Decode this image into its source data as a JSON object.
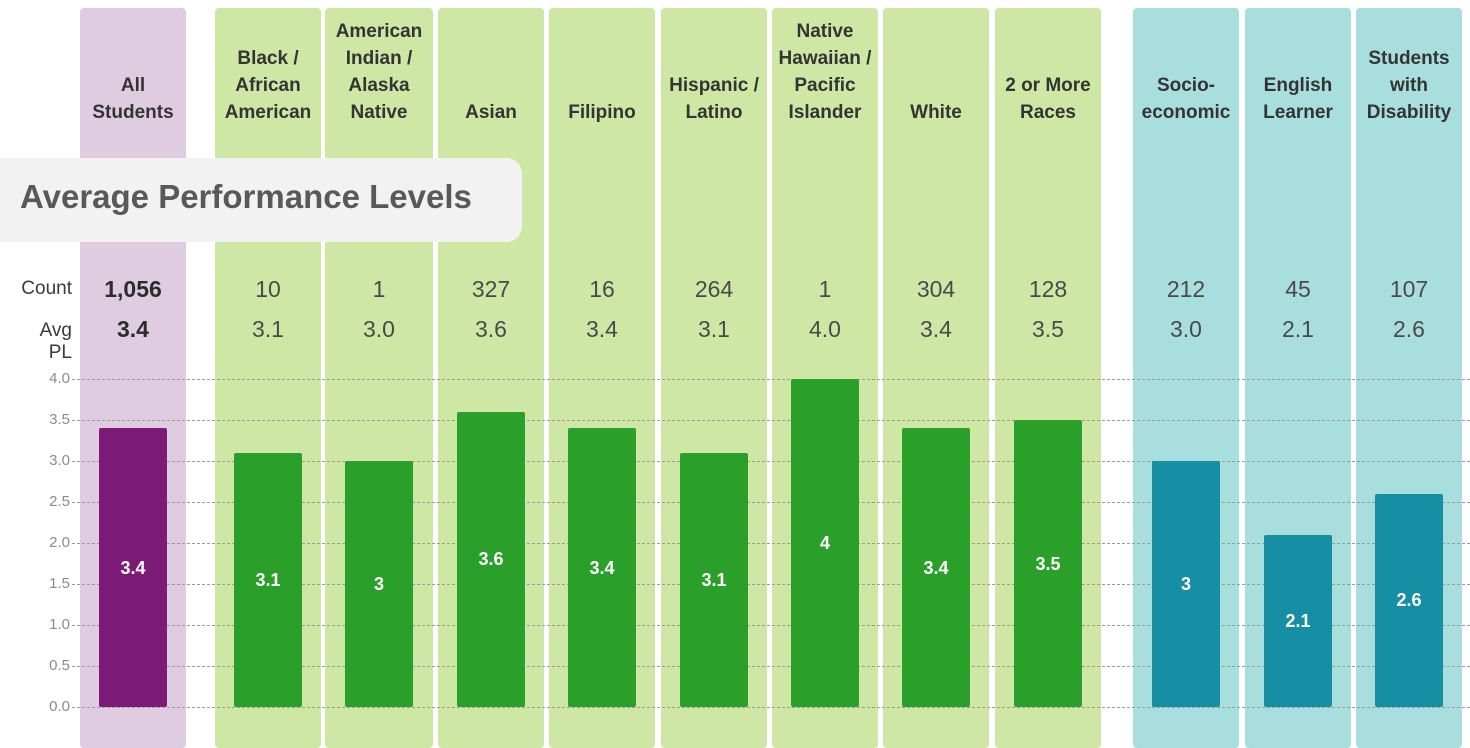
{
  "title": "Average Performance Levels",
  "row_labels": {
    "count": "Count",
    "avg": "Avg PL"
  },
  "colors": {
    "all": "#7d1a78",
    "race": "#2aa02a",
    "group": "#168ea3"
  },
  "chart_data": {
    "type": "bar",
    "ylim": [
      0,
      4
    ],
    "yticks": [
      "0.0",
      "0.5",
      "1.0",
      "1.5",
      "2.0",
      "2.5",
      "3.0",
      "3.5",
      "4.0"
    ],
    "grid": true,
    "categories": [
      {
        "label": "All Students",
        "lines": [
          "All",
          "Students"
        ],
        "group": "all",
        "count": "1,056",
        "avg": "3.4",
        "value": 3.4,
        "value_label": "3.4"
      },
      {
        "label": "Black / African American",
        "lines": [
          "Black /",
          "African",
          "American"
        ],
        "group": "race",
        "count": "10",
        "avg": "3.1",
        "value": 3.1,
        "value_label": "3.1"
      },
      {
        "label": "American Indian / Alaska Native",
        "lines": [
          "American",
          "Indian /",
          "Alaska",
          "Native"
        ],
        "group": "race",
        "count": "1",
        "avg": "3.0",
        "value": 3.0,
        "value_label": "3"
      },
      {
        "label": "Asian",
        "lines": [
          "Asian"
        ],
        "group": "race",
        "count": "327",
        "avg": "3.6",
        "value": 3.6,
        "value_label": "3.6"
      },
      {
        "label": "Filipino",
        "lines": [
          "Filipino"
        ],
        "group": "race",
        "count": "16",
        "avg": "3.4",
        "value": 3.4,
        "value_label": "3.4"
      },
      {
        "label": "Hispanic / Latino",
        "lines": [
          "Hispanic /",
          "Latino"
        ],
        "group": "race",
        "count": "264",
        "avg": "3.1",
        "value": 3.1,
        "value_label": "3.1"
      },
      {
        "label": "Native Hawaiian / Pacific Islander",
        "lines": [
          "Native",
          "Hawaiian /",
          "Pacific",
          "Islander"
        ],
        "group": "race",
        "count": "1",
        "avg": "4.0",
        "value": 4.0,
        "value_label": "4"
      },
      {
        "label": "White",
        "lines": [
          "White"
        ],
        "group": "race",
        "count": "304",
        "avg": "3.4",
        "value": 3.4,
        "value_label": "3.4"
      },
      {
        "label": "2 or More Races",
        "lines": [
          "2 or More",
          "Races"
        ],
        "group": "race",
        "count": "128",
        "avg": "3.5",
        "value": 3.5,
        "value_label": "3.5"
      },
      {
        "label": "Socio-economic",
        "lines": [
          "Socio-",
          "economic"
        ],
        "group": "group",
        "count": "212",
        "avg": "3.0",
        "value": 3.0,
        "value_label": "3"
      },
      {
        "label": "English Learner",
        "lines": [
          "English",
          "Learner"
        ],
        "group": "group",
        "count": "45",
        "avg": "2.1",
        "value": 2.1,
        "value_label": "2.1"
      },
      {
        "label": "Students with Disability",
        "lines": [
          "Students",
          "with",
          "Disability"
        ],
        "group": "group",
        "count": "107",
        "avg": "2.6",
        "value": 2.6,
        "value_label": "2.6"
      }
    ]
  }
}
